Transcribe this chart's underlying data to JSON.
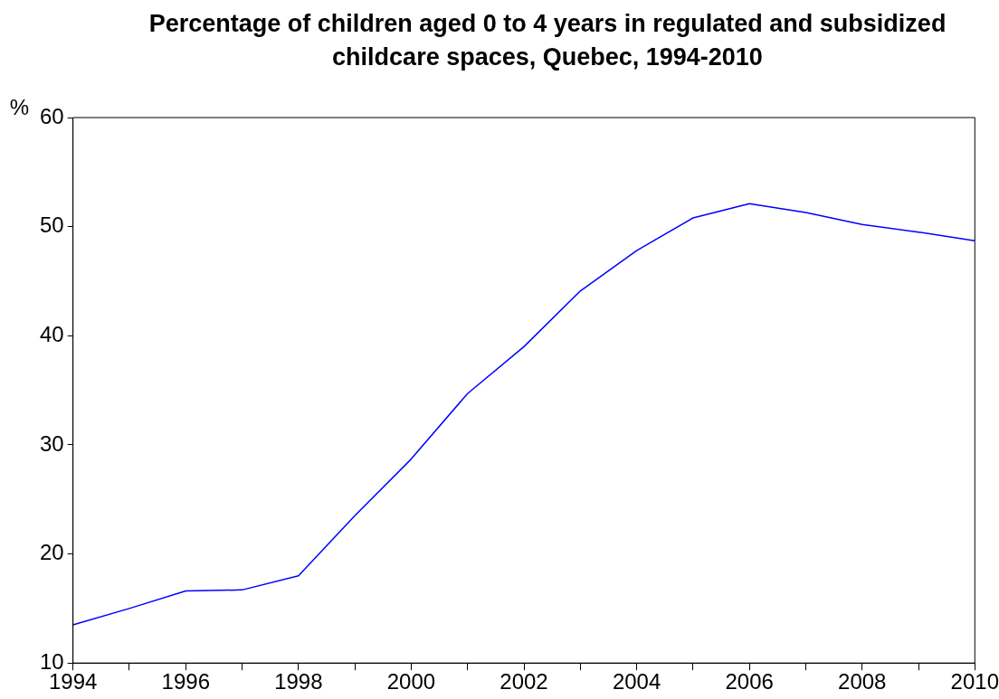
{
  "chart_data": {
    "type": "line",
    "title": "Percentage of children aged 0 to 4 years in regulated and subsidized childcare spaces, Quebec, 1994-2010",
    "ylabel": "%",
    "x": [
      1994,
      1995,
      1996,
      1997,
      1998,
      1999,
      2000,
      2001,
      2002,
      2003,
      2004,
      2005,
      2006,
      2007,
      2008,
      2009,
      2010
    ],
    "series": [
      {
        "color": "#0000ff",
        "values": [
          13.5,
          15.0,
          16.6,
          16.7,
          18.0,
          23.5,
          28.7,
          34.7,
          39.0,
          44.1,
          47.8,
          50.8,
          52.1,
          51.3,
          50.2,
          49.5,
          48.7
        ]
      }
    ],
    "xlim": [
      1994,
      2010
    ],
    "xticks": [
      1994,
      {
        "value": 1995,
        "label": null
      },
      1996,
      {
        "value": 1997,
        "label": null
      },
      1998,
      {
        "value": 1999,
        "label": null
      },
      2000,
      {
        "value": 2001,
        "label": null
      },
      2002,
      {
        "value": 2003,
        "label": null
      },
      2004,
      {
        "value": 2005,
        "label": null
      },
      2006,
      {
        "value": 2007,
        "label": null
      },
      2008,
      {
        "value": 2009,
        "label": null
      },
      2010
    ],
    "ylim": [
      10,
      60
    ],
    "yticks": [
      10,
      20,
      30,
      40,
      50,
      60
    ],
    "grid": false,
    "legend": false,
    "marker": "none",
    "line_style": "solid"
  }
}
